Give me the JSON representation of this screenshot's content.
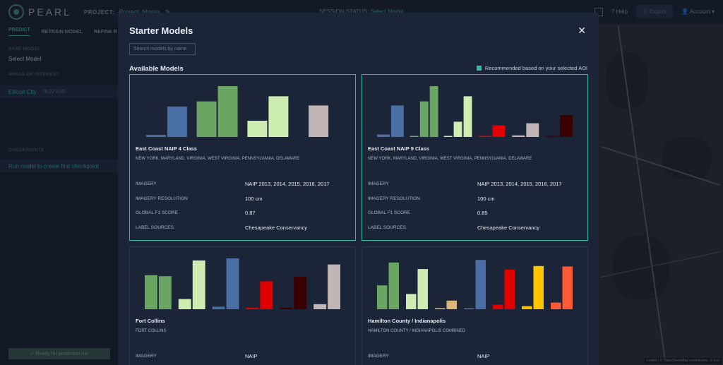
{
  "app": {
    "logo_text": "PEARL",
    "project_label": "PROJECT:",
    "project_name": "Project_Mania",
    "session_label": "SESSION STATUS:",
    "session_value": "Select Model",
    "help": "Help",
    "export": "Export",
    "account": "Account"
  },
  "left": {
    "tabs": [
      "PREDICT",
      "RETRAIN MODEL",
      "REFINE R"
    ],
    "base_model_label": "BASE MODEL",
    "base_model_value": "Select Model",
    "aoi_label": "AREAS OF INTEREST",
    "aoi_name": "Ellicott City",
    "aoi_size": "79.22 KM2",
    "checkpoints_label": "CHECKPOINTS",
    "checkpoint_hint": "Run model to create first checkpoint",
    "ready_button": "Ready for prediction run"
  },
  "modal": {
    "title": "Starter Models",
    "search_placeholder": "Search models by name",
    "available_label": "Available Models",
    "legend_text": "Recommended based on your selected AOI",
    "legend_color": "#2fb8a2",
    "attr_labels": [
      "IMAGERY",
      "IMAGERY RESOLUTION",
      "GLOBAL F1 SCORE",
      "LABEL SOURCES"
    ],
    "cards": [
      {
        "name": "East Coast NAIP 4 Class",
        "region": "NEW YORK, MARYLAND, VIRGINIA, WEST VIRGINIA, PENNSYLVANIA, DELAWARE",
        "recommended": true,
        "imagery": "NAIP 2013, 2014, 2015, 2016, 2017",
        "resolution": "100 cm",
        "f1": "0.87",
        "label_sources": "Chesapeake Conservancy"
      },
      {
        "name": "East Coast NAIP 9 Class",
        "region": "NEW YORK, MARYLAND, VIRGINIA, WEST VIRGINIA, PENNSYLVANIA, DELAWARE",
        "recommended": true,
        "imagery": "NAIP 2013, 2014, 2015, 2016, 2017",
        "resolution": "100 cm",
        "f1": "0.85",
        "label_sources": "Chesapeake Conservancy"
      },
      {
        "name": "Fort Collins",
        "region": "FORT COLLINS",
        "recommended": false,
        "imagery": "NAIP"
      },
      {
        "name": "Hamilton County / Indianapolis",
        "region": "HAMILTON COUNTY / INDIANAPOLIS COMBINED",
        "recommended": false,
        "imagery": "NAIP"
      }
    ]
  },
  "map": {
    "attribution": "Leaflet | © OpenStreetMap contributors, © Esri"
  },
  "chart_data": [
    {
      "type": "bar",
      "series": [
        {
          "color": "#4a6fa5",
          "values": [
            0.04,
            0.6
          ]
        },
        {
          "color": "#6aa564",
          "values": [
            0.7,
            1.0
          ]
        },
        {
          "color": "#cdeeb0",
          "values": [
            0.32,
            0.8
          ]
        },
        {
          "color": "#c2b5b5",
          "values": [
            0.62
          ]
        }
      ]
    },
    {
      "type": "bar",
      "series": [
        {
          "color": "#4a6fa5",
          "values": [
            0.05,
            0.62
          ]
        },
        {
          "color": "#6aa564",
          "values": [
            0.01,
            0.7,
            1.0
          ]
        },
        {
          "color": "#cdeeb0",
          "values": [
            0.01,
            0.3,
            0.8
          ]
        },
        {
          "color": "#e00000",
          "values": [
            0.01,
            0.23
          ]
        },
        {
          "color": "#c2b5b5",
          "values": [
            0.03,
            0.27
          ]
        },
        {
          "color": "#3a0000",
          "values": [
            0.01,
            0.43
          ]
        }
      ]
    },
    {
      "type": "bar",
      "series": [
        {
          "color": "#6aa564",
          "values": [
            0.67,
            0.65
          ]
        },
        {
          "color": "#cdeeb0",
          "values": [
            0.2,
            0.96
          ]
        },
        {
          "color": "#4a6fa5",
          "values": [
            0.05,
            1.0
          ]
        },
        {
          "color": "#e00000",
          "values": [
            0.03,
            0.55
          ]
        },
        {
          "color": "#3a0000",
          "values": [
            0.03,
            0.64
          ]
        },
        {
          "color": "#c2b5b5",
          "values": [
            0.1,
            0.88
          ]
        }
      ]
    },
    {
      "type": "bar",
      "series": [
        {
          "color": "#6aa564",
          "values": [
            0.47,
            0.92
          ]
        },
        {
          "color": "#cdeeb0",
          "values": [
            0.3,
            0.79
          ]
        },
        {
          "color": "#d8b87a",
          "values": [
            0.02,
            0.17
          ]
        },
        {
          "color": "#4a6fa5",
          "values": [
            0.02,
            0.97
          ]
        },
        {
          "color": "#e00000",
          "values": [
            0.09,
            0.78
          ]
        },
        {
          "color": "#ffc400",
          "values": [
            0.06,
            0.85
          ]
        },
        {
          "color": "#ff5a36",
          "values": [
            0.13,
            0.84
          ]
        }
      ]
    }
  ]
}
